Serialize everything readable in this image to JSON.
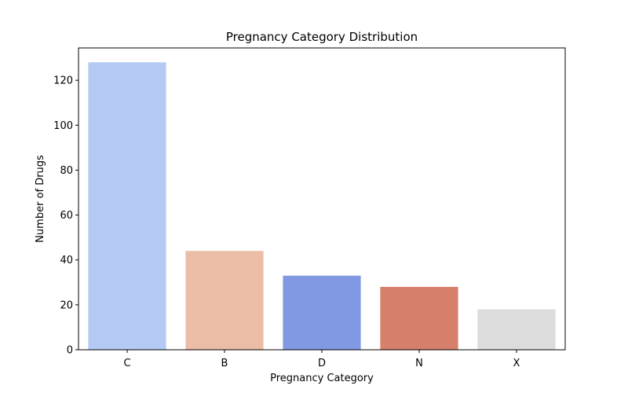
{
  "chart_data": {
    "type": "bar",
    "title": "Pregnancy Category Distribution",
    "xlabel": "Pregnancy Category",
    "ylabel": "Number of Drugs",
    "categories": [
      "C",
      "B",
      "D",
      "N",
      "X"
    ],
    "values": [
      128,
      44,
      33,
      28,
      18
    ],
    "colors": [
      "#b4c9f3",
      "#ebbda7",
      "#8199e2",
      "#d6806c",
      "#dcdcdc"
    ],
    "ylim": [
      0,
      134.4
    ],
    "yticks": [
      0,
      20,
      40,
      60,
      80,
      100,
      120
    ],
    "grid": false
  }
}
